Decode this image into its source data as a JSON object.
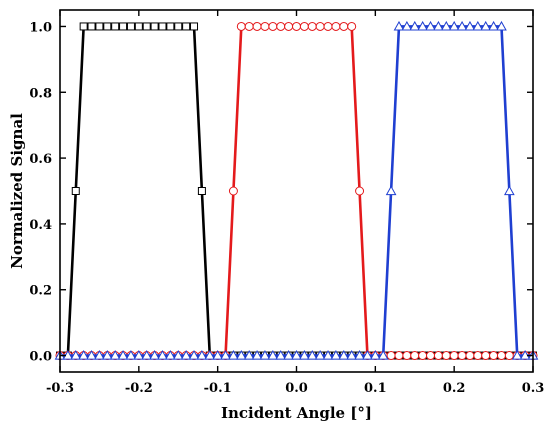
{
  "chart_data": {
    "type": "line",
    "xlabel": "Incident Angle [°]",
    "ylabel": "Normalized Signal",
    "xlim": [
      -0.3,
      0.3
    ],
    "ylim": [
      -0.05,
      1.05
    ],
    "xticks": [
      -0.3,
      -0.2,
      -0.1,
      0.0,
      0.1,
      0.2,
      0.3
    ],
    "xtick_labels": [
      "-0.3",
      "-0.2",
      "-0.1",
      "0.0",
      "0.1",
      "0.2",
      "0.3"
    ],
    "yticks": [
      0.0,
      0.2,
      0.4,
      0.6,
      0.8,
      1.0
    ],
    "ytick_labels": [
      "0.0",
      "0.2",
      "0.4",
      "0.6",
      "0.8",
      "1.0"
    ],
    "grid": false,
    "legend": "none",
    "series": [
      {
        "color": "#000000",
        "marker": "square",
        "x": [
          -0.3,
          -0.29,
          -0.28,
          -0.27,
          -0.265,
          -0.26,
          -0.255,
          -0.25,
          -0.245,
          -0.24,
          -0.235,
          -0.23,
          -0.225,
          -0.22,
          -0.215,
          -0.21,
          -0.205,
          -0.2,
          -0.195,
          -0.19,
          -0.185,
          -0.18,
          -0.175,
          -0.17,
          -0.165,
          -0.16,
          -0.155,
          -0.15,
          -0.145,
          -0.14,
          -0.135,
          -0.13,
          -0.12,
          -0.11,
          -0.1,
          -0.09,
          -0.08,
          -0.07,
          -0.06,
          -0.05,
          -0.04,
          -0.03,
          -0.02,
          -0.01,
          0.0,
          0.01,
          0.02,
          0.03,
          0.04,
          0.05,
          0.06,
          0.07,
          0.08,
          0.09,
          0.1,
          0.11,
          0.12,
          0.13,
          0.14,
          0.15,
          0.16,
          0.17,
          0.18,
          0.19,
          0.2,
          0.21,
          0.22,
          0.23,
          0.24,
          0.25,
          0.26,
          0.27,
          0.28,
          0.29,
          0.3
        ],
        "y": [
          0,
          0,
          0.5,
          1,
          1,
          1,
          1,
          1,
          1,
          1,
          1,
          1,
          1,
          1,
          1,
          1,
          1,
          1,
          1,
          1,
          1,
          1,
          1,
          1,
          1,
          1,
          1,
          1,
          1,
          1,
          1,
          1,
          0.5,
          0,
          0,
          0,
          0,
          0,
          0,
          0,
          0,
          0,
          0,
          0,
          0,
          0,
          0,
          0,
          0,
          0,
          0,
          0,
          0,
          0,
          0,
          0,
          0,
          0,
          0,
          0,
          0,
          0,
          0,
          0,
          0,
          0,
          0,
          0,
          0,
          0,
          0,
          0,
          0,
          0,
          0
        ],
        "marker_x": [
          -0.3,
          -0.29,
          -0.28,
          -0.27,
          -0.26,
          -0.25,
          -0.24,
          -0.23,
          -0.22,
          -0.21,
          -0.2,
          -0.19,
          -0.18,
          -0.17,
          -0.16,
          -0.15,
          -0.14,
          -0.13,
          -0.12,
          -0.11,
          -0.1,
          -0.09,
          -0.08,
          -0.07,
          -0.06,
          -0.05,
          -0.04,
          -0.03,
          -0.02,
          -0.01,
          0.0,
          0.01,
          0.02,
          0.03,
          0.04,
          0.05,
          0.06,
          0.07,
          0.08,
          0.09,
          0.1,
          0.11,
          0.12,
          0.13,
          0.14,
          0.15,
          0.16,
          0.17,
          0.18,
          0.19,
          0.2,
          0.21,
          0.22,
          0.23,
          0.24,
          0.25,
          0.26,
          0.27,
          0.28,
          0.29,
          0.3
        ],
        "marker_y": [
          0,
          0,
          0.5,
          1,
          1,
          1,
          1,
          1,
          1,
          1,
          1,
          1,
          1,
          1,
          1,
          1,
          1,
          1,
          0.5,
          0,
          0,
          0,
          0,
          0,
          0,
          0,
          0,
          0,
          0,
          0,
          0,
          0,
          0,
          0,
          0,
          0,
          0,
          0,
          0,
          0,
          0,
          0,
          0,
          0,
          0,
          0,
          0,
          0,
          0,
          0,
          0,
          0,
          0,
          0,
          0,
          0,
          0,
          0,
          0,
          0,
          0
        ]
      },
      {
        "color": "#e41a1c",
        "marker": "circle",
        "x": [
          -0.3,
          -0.29,
          -0.28,
          -0.27,
          -0.26,
          -0.25,
          -0.24,
          -0.23,
          -0.22,
          -0.21,
          -0.2,
          -0.19,
          -0.18,
          -0.17,
          -0.16,
          -0.15,
          -0.14,
          -0.13,
          -0.12,
          -0.11,
          -0.1,
          -0.09,
          -0.08,
          -0.07,
          -0.06,
          -0.05,
          -0.04,
          -0.03,
          -0.02,
          -0.01,
          0.0,
          0.01,
          0.02,
          0.03,
          0.04,
          0.05,
          0.06,
          0.07,
          0.08,
          0.09,
          0.1,
          0.11,
          0.12,
          0.13,
          0.14,
          0.15,
          0.16,
          0.17,
          0.18,
          0.19,
          0.2,
          0.21,
          0.22,
          0.23,
          0.24,
          0.25,
          0.26,
          0.27,
          0.28,
          0.29,
          0.3
        ],
        "y": [
          0,
          0,
          0,
          0,
          0,
          0,
          0,
          0,
          0,
          0,
          0,
          0,
          0,
          0,
          0,
          0,
          0,
          0,
          0,
          0,
          0,
          0,
          0.5,
          1,
          1,
          1,
          1,
          1,
          1,
          1,
          1,
          1,
          1,
          1,
          1,
          1,
          1,
          1,
          0.5,
          0,
          0,
          0,
          0,
          0,
          0,
          0,
          0,
          0,
          0,
          0,
          0,
          0,
          0,
          0,
          0,
          0,
          0,
          0,
          0,
          0,
          0
        ]
      },
      {
        "color": "#1f3fd1",
        "marker": "triangle",
        "x": [
          -0.3,
          -0.29,
          -0.28,
          -0.27,
          -0.26,
          -0.25,
          -0.24,
          -0.23,
          -0.22,
          -0.21,
          -0.2,
          -0.19,
          -0.18,
          -0.17,
          -0.16,
          -0.15,
          -0.14,
          -0.13,
          -0.12,
          -0.11,
          -0.1,
          -0.09,
          -0.08,
          -0.07,
          -0.06,
          -0.05,
          -0.04,
          -0.03,
          -0.02,
          -0.01,
          0.0,
          0.01,
          0.02,
          0.03,
          0.04,
          0.05,
          0.06,
          0.07,
          0.08,
          0.09,
          0.1,
          0.11,
          0.12,
          0.13,
          0.14,
          0.15,
          0.16,
          0.17,
          0.18,
          0.19,
          0.2,
          0.21,
          0.22,
          0.23,
          0.24,
          0.25,
          0.26,
          0.27,
          0.28,
          0.29,
          0.3
        ],
        "y": [
          0,
          0,
          0,
          0,
          0,
          0,
          0,
          0,
          0,
          0,
          0,
          0,
          0,
          0,
          0,
          0,
          0,
          0,
          0,
          0,
          0,
          0,
          0,
          0,
          0,
          0,
          0,
          0,
          0,
          0,
          0,
          0,
          0,
          0,
          0,
          0,
          0,
          0,
          0,
          0,
          0,
          0,
          0.5,
          1,
          1,
          1,
          1,
          1,
          1,
          1,
          1,
          1,
          1,
          1,
          1,
          1,
          1,
          0.5,
          0,
          0,
          0
        ]
      }
    ]
  }
}
